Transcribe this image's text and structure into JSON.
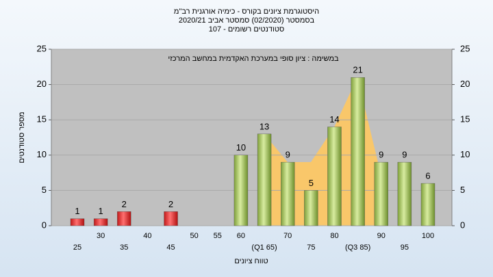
{
  "chart_data": {
    "type": "bar",
    "title": "היסטוגרמת ציונים בקורס - כימיה אורגנית רב\"מ",
    "subtitle": "בסמסטר  (02/2020)  סמסטר אביב 2020/21",
    "subtitle2": "סטודנטים רשומים - 107",
    "annotation": "במשימה : ציון סופי במערכת האקדמית במחשב המרכזי",
    "x_label": "טווח ציונים",
    "y_label": "מספר סטודנטים",
    "categories": [
      "25",
      "30",
      "35",
      "40",
      "45",
      "50",
      "55",
      "60",
      "(Q1 65)",
      "70",
      "75",
      "80",
      "(Q3 85)",
      "90",
      "95",
      "100"
    ],
    "values": [
      1,
      1,
      2,
      0,
      2,
      0,
      0,
      10,
      13,
      9,
      5,
      14,
      21,
      9,
      9,
      6
    ],
    "colors": [
      "red",
      "red",
      "red",
      "red",
      "red",
      "red",
      "red",
      "green",
      "green",
      "green",
      "green",
      "green",
      "green",
      "green",
      "green",
      "green"
    ],
    "ylim": [
      0,
      25
    ],
    "yticks": [
      0,
      5,
      10,
      15,
      20,
      25
    ],
    "y2ticks": [
      0,
      5,
      10,
      15,
      20,
      25
    ],
    "grid": true
  }
}
